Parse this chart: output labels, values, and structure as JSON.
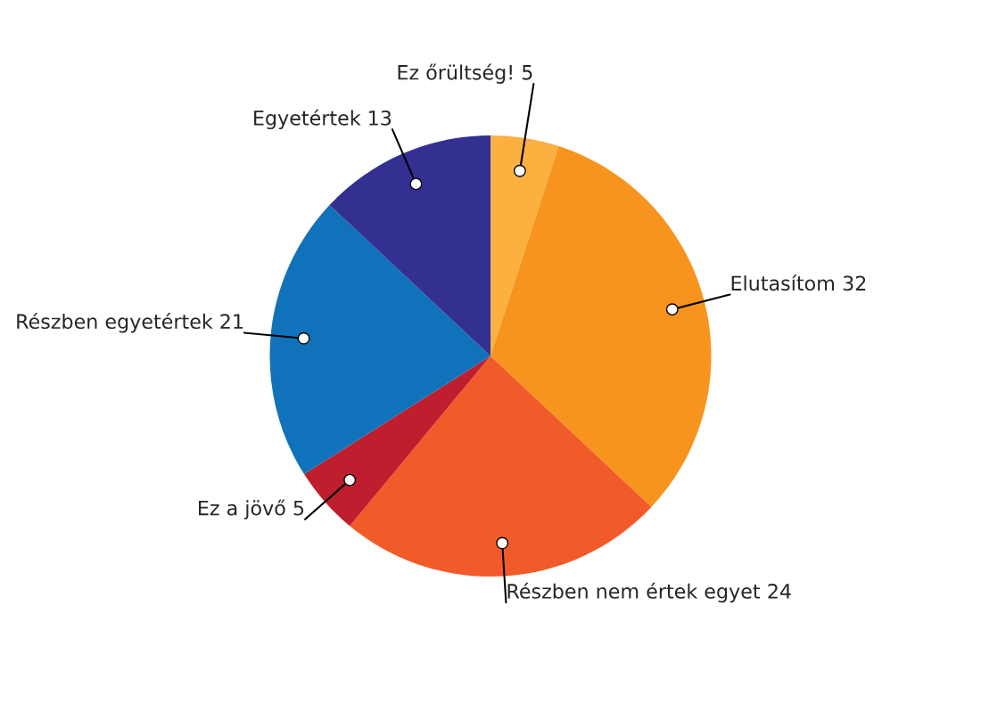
{
  "chart_data": {
    "type": "pie",
    "categories": [
      "Ez őrültség!",
      "Elutasítom",
      "Részben nem értek egyet",
      "Ez a jövő",
      "Részben egyetértek",
      "Egyetértek"
    ],
    "values": [
      5,
      32,
      24,
      5,
      21,
      13
    ],
    "colors": [
      "#fbb040",
      "#f7941d",
      "#f15a29",
      "#be1e2d",
      "#1072ba",
      "#333092"
    ],
    "data_labels": true
  }
}
